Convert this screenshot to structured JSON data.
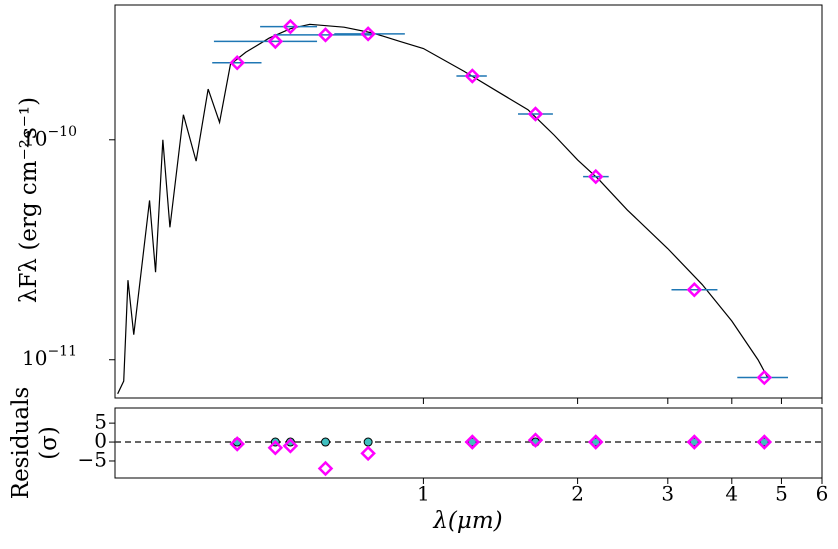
{
  "chart_data": [
    {
      "type": "scatter",
      "log_x": true,
      "log_y": true,
      "ylabel": "λFλ (erg cm⁻²s⁻¹)",
      "xlim": [
        0.25,
        6
      ],
      "xticks": [
        1,
        2,
        3,
        4,
        5,
        6
      ],
      "ylim": [
        6.7e-12,
        4.1e-10
      ],
      "yticks": [
        {
          "value": 1e-10,
          "label": "10",
          "exponent": "−10"
        },
        {
          "value": 1e-11,
          "label": "10",
          "exponent": "−11"
        }
      ],
      "model": {
        "color": "#000000",
        "x": [
          0.253,
          0.26,
          0.265,
          0.272,
          0.292,
          0.3,
          0.31,
          0.32,
          0.34,
          0.36,
          0.38,
          0.4,
          0.42,
          0.45,
          0.5,
          0.55,
          0.6,
          0.7,
          0.8,
          0.9,
          1.0,
          1.2,
          1.4,
          1.6,
          1.8,
          2.0,
          2.2,
          2.5,
          3.0,
          3.5,
          4.0,
          4.5,
          4.7
        ],
        "y": [
          7e-12,
          8e-12,
          2.3e-11,
          1.3e-11,
          5.3e-11,
          2.5e-11,
          1e-10,
          4e-11,
          1.3e-10,
          8e-11,
          1.7e-10,
          1.2e-10,
          2.2e-10,
          2.5e-10,
          2.9e-10,
          3.2e-10,
          3.35e-10,
          3.25e-10,
          3.05e-10,
          2.8e-10,
          2.6e-10,
          2.05e-10,
          1.65e-10,
          1.37e-10,
          1.05e-10,
          8.1e-11,
          6.6e-11,
          4.8e-11,
          3.2e-11,
          2.2e-11,
          1.5e-11,
          1e-11,
          8.3e-12
        ]
      },
      "points": {
        "color": "#ff00ff",
        "err_color": "#1f77b4",
        "x": [
          0.433,
          0.514,
          0.55,
          0.644,
          0.78,
          1.246,
          1.655,
          2.17,
          3.38,
          4.63
        ],
        "y": [
          2.24e-10,
          2.8e-10,
          3.27e-10,
          3e-10,
          3.03e-10,
          1.95e-10,
          1.31e-10,
          6.8e-11,
          2.08e-11,
          8.3e-12
        ],
        "x_min": [
          0.387,
          0.39,
          0.48,
          0.51,
          0.67,
          1.16,
          1.53,
          2.05,
          3.05,
          4.1
        ],
        "x_max": [
          0.483,
          0.62,
          0.62,
          0.8,
          0.92,
          1.33,
          1.79,
          2.3,
          3.75,
          5.15
        ]
      }
    },
    {
      "type": "scatter",
      "log_x": true,
      "log_y": false,
      "ylabel": [
        "Residuals",
        "(σ)"
      ],
      "xlabel": "λ(μm)",
      "xlim": [
        0.25,
        6
      ],
      "xticks": [
        1,
        2,
        3,
        4,
        5,
        6
      ],
      "ylim": [
        -9.5,
        9
      ],
      "yticks": [
        {
          "value": -5,
          "label": "−5"
        },
        0,
        5
      ],
      "model_points": {
        "color": "#3fbfbf",
        "x": [
          0.433,
          0.514,
          0.55,
          0.644,
          0.78,
          1.246,
          1.655,
          2.17,
          3.38,
          4.63
        ],
        "y": [
          0,
          0,
          0,
          0,
          0,
          0,
          0,
          0,
          0,
          0
        ]
      },
      "points": {
        "color": "#ff00ff",
        "x": [
          0.433,
          0.514,
          0.55,
          0.644,
          0.78,
          1.246,
          1.655,
          2.17,
          3.38,
          4.63
        ],
        "y": [
          -0.5,
          -1.5,
          -1,
          -7,
          -3,
          0,
          0.5,
          0,
          0,
          0
        ]
      }
    }
  ]
}
